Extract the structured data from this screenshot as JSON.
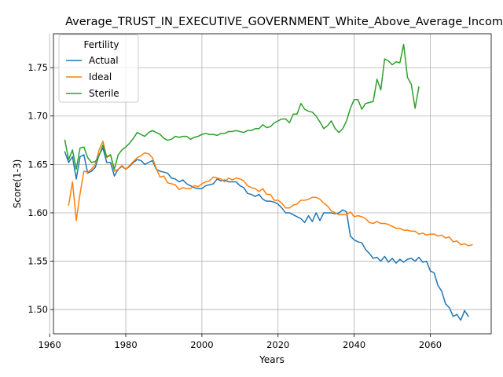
{
  "chart_data": {
    "type": "line",
    "title": "Average_TRUST_IN_EXECUTIVE_GOVERNMENT_White_Above_Average_Income",
    "xlabel": "Years",
    "ylabel": "Score(1-3)",
    "xlim": [
      1961,
      2076
    ],
    "ylim": [
      1.475,
      1.785
    ],
    "xticks": [
      1960,
      1980,
      2000,
      2020,
      2040,
      2060
    ],
    "yticks": [
      1.5,
      1.55,
      1.6,
      1.65,
      1.7,
      1.75
    ],
    "ytick_labels": [
      "1.50",
      "1.55",
      "1.60",
      "1.65",
      "1.70",
      "1.75"
    ],
    "grid": true,
    "legend_title": "Fertility",
    "legend_position": "upper-left",
    "series": [
      {
        "name": "Actual",
        "color": "#1f77b4",
        "x_start": 1964,
        "values": [
          1.663,
          1.652,
          1.658,
          1.635,
          1.658,
          1.66,
          1.641,
          1.643,
          1.647,
          1.66,
          1.667,
          1.652,
          1.652,
          1.638,
          1.645,
          1.648,
          1.645,
          1.648,
          1.652,
          1.655,
          1.654,
          1.65,
          1.652,
          1.654,
          1.645,
          1.643,
          1.642,
          1.641,
          1.636,
          1.635,
          1.632,
          1.634,
          1.63,
          1.628,
          1.626,
          1.625,
          1.625,
          1.628,
          1.629,
          1.63,
          1.635,
          1.633,
          1.634,
          1.632,
          1.632,
          1.632,
          1.628,
          1.626,
          1.62,
          1.619,
          1.617,
          1.619,
          1.614,
          1.612,
          1.612,
          1.611,
          1.609,
          1.605,
          1.6,
          1.6,
          1.598,
          1.596,
          1.594,
          1.59,
          1.597,
          1.591,
          1.6,
          1.592,
          1.6,
          1.6,
          1.6,
          1.599,
          1.6,
          1.603,
          1.601,
          1.576,
          1.572,
          1.57,
          1.569,
          1.562,
          1.558,
          1.553,
          1.554,
          1.55,
          1.555,
          1.549,
          1.553,
          1.548,
          1.552,
          1.549,
          1.552,
          1.553,
          1.55,
          1.554,
          1.549,
          1.55,
          1.54,
          1.538,
          1.525,
          1.519,
          1.506,
          1.502,
          1.493,
          1.495,
          1.489,
          1.499,
          1.493
        ]
      },
      {
        "name": "Ideal",
        "color": "#ff7f0e",
        "x_start": 1965,
        "values": [
          1.608,
          1.632,
          1.592,
          1.62,
          1.643,
          1.642,
          1.645,
          1.65,
          1.665,
          1.674,
          1.657,
          1.66,
          1.643,
          1.645,
          1.649,
          1.645,
          1.649,
          1.653,
          1.657,
          1.659,
          1.662,
          1.661,
          1.657,
          1.646,
          1.637,
          1.638,
          1.631,
          1.63,
          1.629,
          1.624,
          1.626,
          1.625,
          1.625,
          1.628,
          1.627,
          1.63,
          1.632,
          1.633,
          1.637,
          1.636,
          1.635,
          1.632,
          1.636,
          1.634,
          1.636,
          1.635,
          1.633,
          1.628,
          1.626,
          1.625,
          1.622,
          1.625,
          1.619,
          1.619,
          1.613,
          1.613,
          1.61,
          1.605,
          1.605,
          1.608,
          1.609,
          1.613,
          1.613,
          1.614,
          1.616,
          1.616,
          1.614,
          1.61,
          1.607,
          1.602,
          1.6,
          1.598,
          1.598,
          1.598,
          1.601,
          1.596,
          1.597,
          1.596,
          1.594,
          1.59,
          1.589,
          1.591,
          1.589,
          1.589,
          1.588,
          1.586,
          1.584,
          1.584,
          1.582,
          1.582,
          1.581,
          1.581,
          1.578,
          1.579,
          1.577,
          1.578,
          1.578,
          1.576,
          1.577,
          1.574,
          1.575,
          1.57,
          1.571,
          1.567,
          1.568,
          1.566,
          1.567
        ]
      },
      {
        "name": "Sterile",
        "color": "#2ca02c",
        "x_start": 1964,
        "values": [
          1.675,
          1.655,
          1.665,
          1.645,
          1.667,
          1.668,
          1.657,
          1.652,
          1.653,
          1.659,
          1.67,
          1.658,
          1.66,
          1.645,
          1.66,
          1.665,
          1.668,
          1.672,
          1.677,
          1.683,
          1.681,
          1.679,
          1.683,
          1.685,
          1.683,
          1.681,
          1.677,
          1.675,
          1.676,
          1.679,
          1.678,
          1.679,
          1.679,
          1.676,
          1.678,
          1.679,
          1.681,
          1.682,
          1.681,
          1.681,
          1.68,
          1.682,
          1.682,
          1.684,
          1.684,
          1.685,
          1.684,
          1.683,
          1.685,
          1.685,
          1.687,
          1.687,
          1.691,
          1.688,
          1.689,
          1.693,
          1.695,
          1.697,
          1.697,
          1.693,
          1.702,
          1.702,
          1.713,
          1.707,
          1.705,
          1.704,
          1.7,
          1.694,
          1.687,
          1.69,
          1.695,
          1.687,
          1.683,
          1.687,
          1.695,
          1.708,
          1.717,
          1.717,
          1.707,
          1.713,
          1.714,
          1.715,
          1.738,
          1.727,
          1.759,
          1.757,
          1.753,
          1.756,
          1.755,
          1.774,
          1.74,
          1.733,
          1.708,
          1.73
        ]
      }
    ]
  }
}
